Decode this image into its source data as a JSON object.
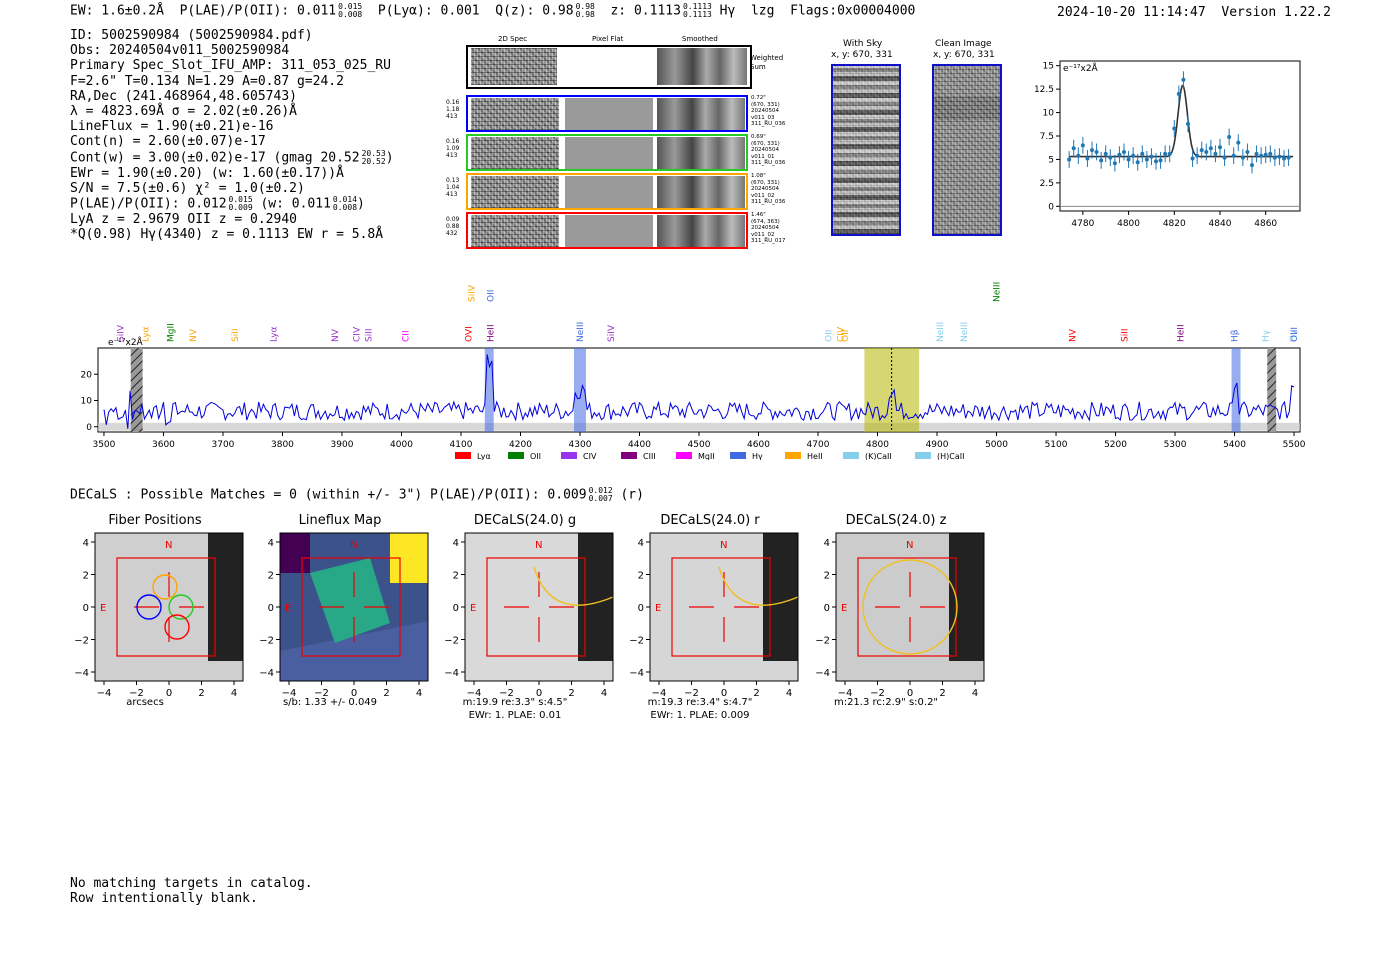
{
  "header": {
    "ew": "EW: 1.6±0.2Å",
    "plae_label": "P(LAE)/P(OII): 0.011",
    "plae_hi": "0.015",
    "plae_lo": "0.008",
    "plya": "P(Lyα): 0.001",
    "q_label": "Q(z): 0.98",
    "q_hi": "0.98",
    "q_lo": "0.98",
    "z_label": "z: 0.1113",
    "z_hi": "0.1113",
    "z_lo": "0.1113",
    "line": "Hγ",
    "tag": "lzg",
    "flags": "Flags:0x00004000",
    "timestamp": "2024-10-20 11:14:47",
    "version": "Version 1.22.2"
  },
  "info": {
    "id": "ID: 5002590984 (5002590984.pdf)",
    "obs": "Obs: 20240504v011_5002590984",
    "primary": "Primary Spec_Slot_IFU_AMP: 311_053_025_RU",
    "fiber": "F=2.6\"  T=0.134  N=1.29  A=0.87  g=24.2",
    "radec": "RA,Dec (241.468964,48.605743)",
    "lambda": "λ = 4823.69Å  σ = 2.02(±0.26)Å",
    "lineflux": "LineFlux = 1.90(±0.21)e-16",
    "contn": "Cont(n) = 2.60(±0.07)e-17",
    "contw": "Cont(w) = 3.00(±0.02)e-17 (gmag 20.52",
    "contw_hi": "20.53",
    "contw_lo": "20.52",
    "contw_end": ")",
    "ewr": "EWr = 1.90(±0.20) (w: 1.60(±0.17))Å",
    "sn": "S/N = 7.5(±0.6)  χ² = 1.0(±0.2)",
    "plae": "P(LAE)/P(OII): 0.012",
    "plae_hi": "0.015",
    "plae_lo": "0.009",
    "plae_w": "(w: 0.011",
    "plae_w_hi": "0.014",
    "plae_w_lo": "0.008",
    "plae_w_end": ")",
    "lya_z": "LyA z = 2.9679  OII z = 0.2940",
    "q_line": "*Q(0.98) Hγ(4340) z = 0.1113  EW r = 5.8Å"
  },
  "cutouts": {
    "col_2d": "2D Spec",
    "col_flat": "Pixel Flat",
    "col_smooth": "Smoothed",
    "weighted": "Weighted\nSum",
    "rows": [
      {
        "left": [
          "0.16",
          "1.18",
          "413"
        ],
        "right": [
          "0.72\"",
          "(670, 331)",
          "20240504",
          "v011_03",
          "311_RU_036"
        ],
        "color": "#0000ff"
      },
      {
        "left": [
          "0.16",
          "1.09",
          "413"
        ],
        "right": [
          "0.69\"",
          "(670, 331)",
          "20240504",
          "v011_01",
          "311_RU_036"
        ],
        "color": "#22cc22"
      },
      {
        "left": [
          "0.13",
          "1.04",
          "413"
        ],
        "right": [
          "1.08\"",
          "(670, 331)",
          "20240504",
          "v011_02",
          "311_RU_036"
        ],
        "color": "#ffa500"
      },
      {
        "left": [
          "0.09",
          "0.88",
          "432"
        ],
        "right": [
          "1.46\"",
          "(674, 363)",
          "20240504",
          "v011_02",
          "311_RU_017"
        ],
        "color": "#ff0000"
      }
    ]
  },
  "sky": {
    "with_sky": "With Sky",
    "with_sky_xy": "x, y: 670, 331",
    "clean": "Clean Image",
    "clean_xy": "x, y: 670, 331"
  },
  "chart_data": [
    {
      "type": "line",
      "name": "emission-line-fit",
      "yunit": "e⁻¹⁷x2Å",
      "xlim": [
        4770,
        4875
      ],
      "ylim": [
        -0.5,
        15.5
      ],
      "xticks": [
        4780,
        4800,
        4820,
        4840,
        4860
      ],
      "yticks": [
        0.0,
        2.5,
        5.0,
        7.5,
        10.0,
        12.5,
        15.0
      ],
      "points": [
        [
          4774,
          5.0
        ],
        [
          4776,
          6.2
        ],
        [
          4778,
          5.4
        ],
        [
          4780,
          6.5
        ],
        [
          4782,
          5.1
        ],
        [
          4784,
          6.0
        ],
        [
          4786,
          5.8
        ],
        [
          4788,
          4.9
        ],
        [
          4790,
          5.6
        ],
        [
          4792,
          5.2
        ],
        [
          4794,
          4.6
        ],
        [
          4796,
          5.5
        ],
        [
          4798,
          5.8
        ],
        [
          4800,
          5.0
        ],
        [
          4802,
          5.4
        ],
        [
          4804,
          4.7
        ],
        [
          4806,
          5.6
        ],
        [
          4808,
          5.0
        ],
        [
          4810,
          5.3
        ],
        [
          4812,
          4.8
        ],
        [
          4814,
          4.9
        ],
        [
          4816,
          5.6
        ],
        [
          4818,
          5.6
        ],
        [
          4820,
          8.3
        ],
        [
          4822,
          12.0
        ],
        [
          4824,
          13.5
        ],
        [
          4826,
          8.8
        ],
        [
          4828,
          5.1
        ],
        [
          4830,
          5.4
        ],
        [
          4832,
          6.0
        ],
        [
          4834,
          5.8
        ],
        [
          4836,
          6.2
        ],
        [
          4838,
          5.6
        ],
        [
          4840,
          6.3
        ],
        [
          4842,
          5.2
        ],
        [
          4844,
          7.4
        ],
        [
          4846,
          5.4
        ],
        [
          4848,
          6.8
        ],
        [
          4850,
          5.2
        ],
        [
          4852,
          5.8
        ],
        [
          4854,
          4.4
        ],
        [
          4856,
          5.6
        ],
        [
          4858,
          5.4
        ],
        [
          4860,
          5.5
        ],
        [
          4862,
          5.6
        ],
        [
          4864,
          5.2
        ],
        [
          4866,
          5.3
        ],
        [
          4868,
          5.1
        ],
        [
          4870,
          5.2
        ]
      ],
      "fit": {
        "continuum": 5.3,
        "center": 4823.69,
        "sigma": 2.02,
        "peak": 12.9
      }
    },
    {
      "type": "line",
      "name": "full-spectrum",
      "yunit": "e⁻¹⁷x2Å",
      "xlim": [
        3490,
        5510
      ],
      "ylim": [
        -2,
        30
      ],
      "xticks": [
        3500,
        3600,
        3700,
        3800,
        3900,
        4000,
        4100,
        4200,
        4300,
        4400,
        4500,
        4600,
        4700,
        4800,
        4900,
        5000,
        5100,
        5200,
        5300,
        5400,
        5500
      ],
      "yticks": [
        0,
        10,
        20
      ],
      "lines": [
        {
          "label": "SiIV",
          "x": 3528,
          "color": "#9933cc",
          "row": 1
        },
        {
          "label": "Lyα",
          "x": 3570,
          "color": "#ffa500",
          "row": 1
        },
        {
          "label": "MgII",
          "x": 3612,
          "color": "#008000",
          "row": 1
        },
        {
          "label": "NV",
          "x": 3650,
          "color": "#ffa500",
          "row": 1
        },
        {
          "label": "SiII",
          "x": 3720,
          "color": "#ffa500",
          "row": 1
        },
        {
          "label": "Lyα",
          "x": 3785,
          "color": "#9933cc",
          "row": 1
        },
        {
          "label": "NV",
          "x": 3888,
          "color": "#9933cc",
          "row": 1
        },
        {
          "label": "CIV",
          "x": 3924,
          "color": "#9933cc",
          "row": 1
        },
        {
          "label": "SiII",
          "x": 3945,
          "color": "#9933cc",
          "row": 1
        },
        {
          "label": "CII",
          "x": 4007,
          "color": "#ff00ff",
          "row": 1
        },
        {
          "label": "OVI",
          "x": 4113,
          "color": "#ff0000",
          "row": 1
        },
        {
          "label": "SiIV",
          "x": 4118,
          "color": "#ffa500",
          "row": 0
        },
        {
          "label": "OII",
          "x": 4150,
          "color": "#4169e1",
          "row": 0
        },
        {
          "label": "HeII",
          "x": 4150,
          "color": "#800080",
          "row": 1
        },
        {
          "label": "NeIII",
          "x": 4300,
          "color": "#4169e1",
          "row": 1
        },
        {
          "label": "SiIV",
          "x": 4352,
          "color": "#9933cc",
          "row": 1
        },
        {
          "label": "OII",
          "x": 4718,
          "color": "#87ceeb",
          "row": 1
        },
        {
          "label": "CIV",
          "x": 4738,
          "color": "#ffa500",
          "row": 1
        },
        {
          "label": "OII",
          "x": 4745,
          "color": "#ffa500",
          "row": 1
        },
        {
          "label": "NeIII",
          "x": 4905,
          "color": "#87ceeb",
          "row": 1
        },
        {
          "label": "NeIII",
          "x": 4945,
          "color": "#87ceeb",
          "row": 1
        },
        {
          "label": "NeIII",
          "x": 5000,
          "color": "#008000",
          "row": 0
        },
        {
          "label": "NV",
          "x": 5128,
          "color": "#ff0000",
          "row": 1
        },
        {
          "label": "SiII",
          "x": 5215,
          "color": "#ff0000",
          "row": 1
        },
        {
          "label": "HeII",
          "x": 5309,
          "color": "#800080",
          "row": 1
        },
        {
          "label": "Hγ",
          "x": 5452,
          "color": "#87ceeb",
          "row": 1
        },
        {
          "label": "Hγ",
          "x": 5498,
          "color": "#87ceeb",
          "row": 1
        },
        {
          "label": "Hβ",
          "x": 5400,
          "color": "#4169e1",
          "row": 1
        },
        {
          "label": "OIII",
          "x": 5500,
          "color": "#4169e1",
          "row": 1
        }
      ],
      "bands": [
        {
          "x0": 3545,
          "x1": 3565,
          "color": "#555555",
          "hatched": true
        },
        {
          "x0": 4140,
          "x1": 4155,
          "color": "#4169e1",
          "hatched": false
        },
        {
          "x0": 4290,
          "x1": 4310,
          "color": "#4169e1",
          "hatched": false
        },
        {
          "x0": 4778,
          "x1": 4870,
          "color": "#b5b500",
          "hatched": false
        },
        {
          "x0": 5395,
          "x1": 5410,
          "color": "#4169e1",
          "hatched": false
        },
        {
          "x0": 5455,
          "x1": 5470,
          "color": "#555555",
          "hatched": true
        }
      ],
      "peak_x": 4823.7,
      "legend": [
        {
          "label": "Lyα",
          "color": "#ff0000"
        },
        {
          "label": "OII",
          "color": "#008000"
        },
        {
          "label": "CIV",
          "color": "#9933ee"
        },
        {
          "label": "CIII",
          "color": "#800080"
        },
        {
          "label": "MgII",
          "color": "#ff00ff"
        },
        {
          "label": "Hγ",
          "color": "#4169e1"
        },
        {
          "label": "HeII",
          "color": "#ffa500"
        },
        {
          "label": "(K)CaII",
          "color": "#87ceeb"
        },
        {
          "label": "(H)CaII",
          "color": "#87ceeb"
        }
      ]
    }
  ],
  "decals": {
    "line": "DECaLS : Possible Matches = 0 (within +/- 3\")  P(LAE)/P(OII): 0.009",
    "hi": "0.012",
    "lo": "0.007",
    "band": "(r)"
  },
  "panels": [
    {
      "title": "Fiber Positions",
      "xlabel": "arcsecs",
      "xlabel2": ""
    },
    {
      "title": "Lineflux Map",
      "xlabel": "s/b: 1.33 +/- 0.049",
      "xlabel2": ""
    },
    {
      "title": "DECaLS(24.0) g",
      "xlabel": "m:19.9  re:3.3\"  s:4.5\"",
      "xlabel2": "EWr: 1. PLAE: 0.01"
    },
    {
      "title": "DECaLS(24.0) r",
      "xlabel": "m:19.3  re:3.4\"  s:4.7\"",
      "xlabel2": "EWr: 1. PLAE: 0.009"
    },
    {
      "title": "DECaLS(24.0) z",
      "xlabel": "m:21.3 rc:2.9\"  s:0.2\"",
      "xlabel2": ""
    }
  ],
  "panel_ticks": [
    "4",
    "2",
    "0",
    "−2",
    "−4"
  ],
  "panel_xticks": [
    "−4",
    "−2",
    "0",
    "2",
    "4"
  ],
  "compass_n": "N",
  "compass_e": "E",
  "footer": {
    "line1": "No matching targets in catalog.",
    "line2": "Row intentionally blank."
  }
}
